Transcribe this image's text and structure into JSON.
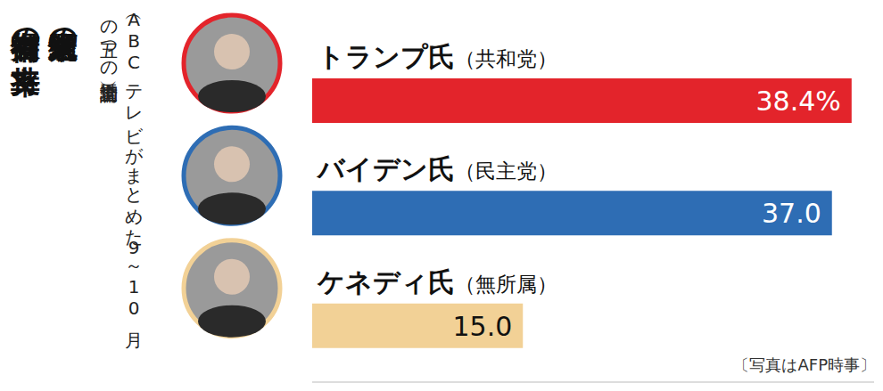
{
  "chart_data": {
    "type": "bar",
    "orientation": "horizontal",
    "title": "米大統領選の有力候補者の支持率",
    "subtitle": "（ABCテレビがまとめた9～10月の五つの世論調査平均）",
    "annotations": [
      "〔写真はAFP時事〕"
    ],
    "categories": [
      "トランプ氏（共和党）",
      "バイデン氏（民主党）",
      "ケネディ氏（無所属）"
    ],
    "values": [
      38.4,
      37.0,
      15.0
    ],
    "value_labels": [
      "38.4%",
      "37.0",
      "15.0"
    ],
    "colors": [
      "#e3242b",
      "#2e6db4",
      "#f2d196"
    ],
    "xlim": [
      0,
      40
    ],
    "data_labels": true,
    "tick_labels": false,
    "grid": false
  }
}
